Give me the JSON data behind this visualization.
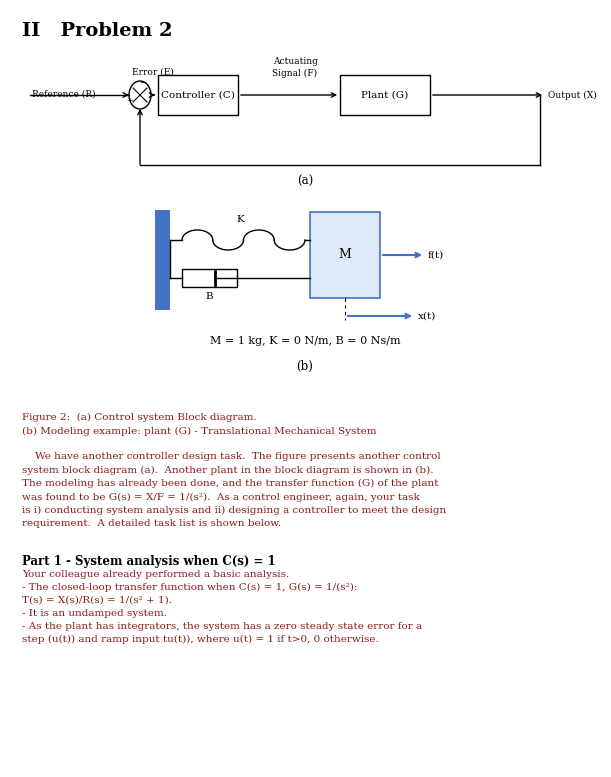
{
  "title": "II   Problem 2",
  "bg_color": "#ffffff",
  "text_color": "#000000",
  "red_brown": "#8B1A1A",
  "blue_color": "#4472c4",
  "figure_caption_line1": "Figure 2:  (a) Control system Block diagram.",
  "figure_caption_line2": "(b) Modeling example: plant (G) - Translational Mechanical System",
  "param_text": "M = 1 kg, K = 0 N/m, B = 0 Ns/m",
  "label_a": "(a)",
  "label_b": "(b)",
  "body_lines": [
    "    We have another controller design task.  The figure presents another control",
    "system block diagram (a).  Another plant in the block diagram is shown in (b).",
    "The modeling has already been done, and the transfer function (G) of the plant",
    "was found to be G(s) = X/F = 1/(s²).  As a control engineer, again, your task",
    "is i) conducting system analysis and ii) designing a controller to meet the design",
    "requirement.  A detailed task list is shown below."
  ],
  "part1_title": "Part 1 - System analysis when C(s) = 1",
  "part1_lines": [
    "Your colleague already performed a basic analysis.",
    "- The closed-loop transfer function when C(s) = 1, G(s) = 1/(s²):",
    "T(s) = X(s)/R(s) = 1/(s² + 1).",
    "- It is an undamped system.",
    "- As the plant has integrators, the system has a zero steady state error for a",
    "step (u(t)) and ramp input tu(t)), where u(t) = 1 if t>0, 0 otherwise."
  ]
}
